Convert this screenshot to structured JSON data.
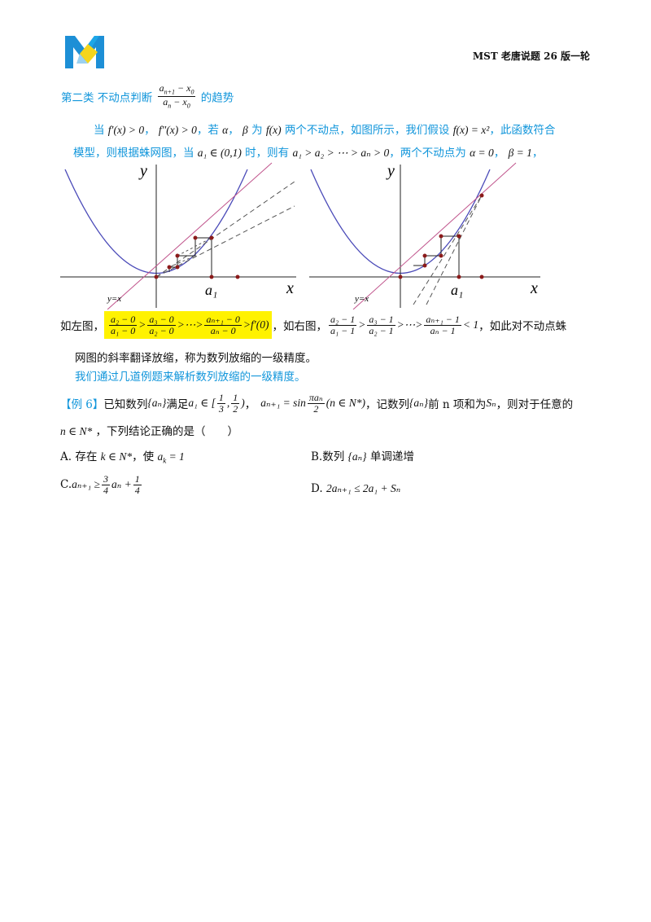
{
  "header": {
    "logo_icon": "mst-logo-icon",
    "title": "MST 老唐说题 26 版一轮"
  },
  "section": {
    "label": "第二类  不动点判断",
    "frac_num": "a",
    "frac_num_sub": "n+1",
    "frac_num_tail": " − x",
    "frac_num_tail_sub": "0",
    "frac_den": "a",
    "frac_den_sub": "n",
    "frac_den_tail": " − x",
    "frac_den_tail_sub": "0",
    "suffix": "的趋势"
  },
  "para1": {
    "line1_a": "当",
    "line1_f1": "f′(x) > 0",
    "line1_sep": "，",
    "line1_f2": "f″(x) > 0",
    "line1_b": "，若",
    "line1_alpha": "α",
    "line1_c": "，",
    "line1_beta": "β",
    "line1_d": "为",
    "line1_fx": "f(x)",
    "line1_e": "两个不动点，如图所示，我们假设",
    "line1_fx2": "f(x) = x²",
    "line1_f": "，此函数符合",
    "line2_a": "模型，则根据蛛网图，当",
    "line2_m1": "a₁ ∈ (0,1)",
    "line2_b": "时，则有",
    "line2_m2": "a₁ > a₂ > ⋯ > aₙ > 0",
    "line2_c": "，两个不动点为",
    "line2_m3": "α = 0",
    "line2_d": "，",
    "line2_m4": "β = 1",
    "line2_e": "，"
  },
  "figures": {
    "left": {
      "y_label": "y",
      "x_label": "x",
      "a1_label": "a₁",
      "line_label": "y=x"
    },
    "right": {
      "y_label": "y",
      "x_label": "x",
      "a1_label": "a₁",
      "line_label": "y=x"
    }
  },
  "compare": {
    "left_prefix": "如左图，",
    "left_fracs": [
      {
        "num": "a₂ − 0",
        "den": "a₁ − 0"
      },
      {
        "num": "a₃ − 0",
        "den": "a₂ − 0"
      },
      {
        "num": "aₙ₊₁ − 0",
        "den": "aₙ − 0"
      }
    ],
    "gt": ">",
    "dots": "⋯",
    "left_tail": "f′(0)",
    "sep": "，",
    "right_prefix": "如右图，",
    "right_fracs": [
      {
        "num": "a₂ − 1",
        "den": "a₁ − 1"
      },
      {
        "num": "a₃ − 1",
        "den": "a₂ − 1"
      },
      {
        "num": "aₙ₊₁ − 1",
        "den": "aₙ − 1"
      }
    ],
    "right_tail": "< 1",
    "right_after": "，如此对不动点蛛",
    "line2": "网图的斜率翻译放缩，称为数列放缩的一级精度。"
  },
  "intro_line": "我们通过几道例题来解析数列放缩的一级精度。",
  "example": {
    "tag": "【例 6】",
    "t1": "已知数列",
    "seq": "{aₙ}",
    "t2": "满足",
    "cond1": "a₁ ∈ [",
    "f1_num": "1",
    "f1_den": "3",
    "comma": ",",
    "f2_num": "1",
    "f2_den": "2",
    "cond1_end": ")",
    "t3": "，",
    "rec_left": "aₙ₊₁ = sin",
    "rec_num": "πaₙ",
    "rec_den": "2",
    "rec_cond": "(n ∈ N*)",
    "t4": "，记数列",
    "t5": "前 n 项和为",
    "sn": "Sₙ",
    "t6": "，则对于任意的",
    "line2_math": "n ∈ N*",
    "line2_text": "，下列结论正确的是（　　）"
  },
  "options": {
    "A_label": "A. 存在",
    "A_math": "k ∈ N*",
    "A_mid": "，使",
    "A_math2": "a",
    "A_sub": "k",
    "A_end": " = 1",
    "B_label": "B.数列",
    "B_seq": "{aₙ}",
    "B_text": "单调递增",
    "C_label": "C.",
    "C_lhs": "aₙ₊₁ ≥",
    "C_f1_num": "3",
    "C_f1_den": "4",
    "C_mid": "aₙ +",
    "C_f2_num": "1",
    "C_f2_den": "4",
    "D_label": "D.",
    "D_math": "2aₙ₊₁ ≤ 2a₁ + Sₙ"
  },
  "colors": {
    "blue_text": "#1296db",
    "highlight": "#fff200",
    "curve": "#4a4ab8",
    "line_yx": "#c0548c",
    "marker": "#8b1a1a"
  }
}
